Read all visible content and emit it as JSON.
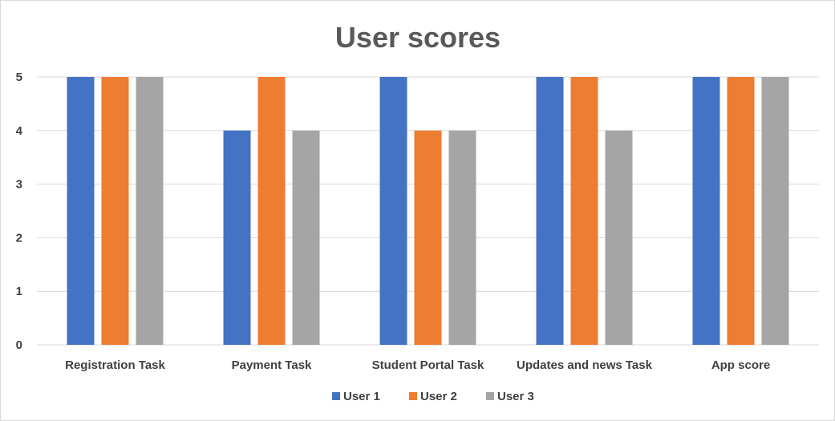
{
  "chart_data": {
    "type": "bar",
    "title": "User scores",
    "categories": [
      "Registration Task",
      "Payment Task",
      "Student Portal Task",
      "Updates and news Task",
      "App score"
    ],
    "series": [
      {
        "name": "User 1",
        "color": "#4472c4",
        "values": [
          5,
          4,
          5,
          5,
          5
        ]
      },
      {
        "name": "User 2",
        "color": "#ed7d31",
        "values": [
          5,
          5,
          4,
          5,
          5
        ]
      },
      {
        "name": "User 3",
        "color": "#a5a5a5",
        "values": [
          5,
          4,
          4,
          4,
          5
        ]
      }
    ],
    "yticks": [
      "0",
      "1",
      "2",
      "3",
      "4",
      "5"
    ],
    "ylim": [
      0,
      5
    ],
    "grid": true,
    "legend_position": "bottom"
  }
}
